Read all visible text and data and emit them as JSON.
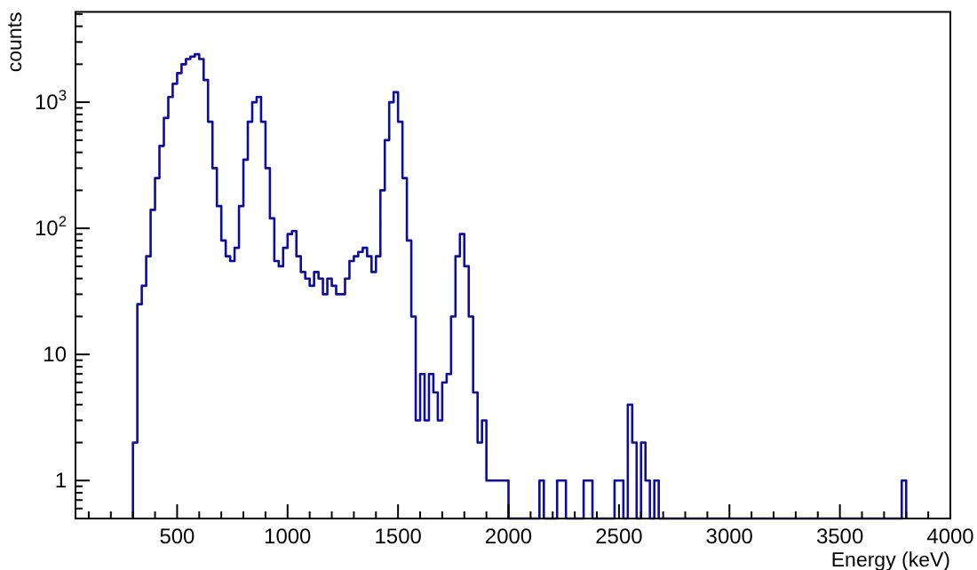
{
  "chart_data": {
    "type": "histogram",
    "xlabel": "Energy (keV)",
    "ylabel": "counts",
    "color": "#0c0ca0",
    "log": "y",
    "xlim": [
      40,
      4000
    ],
    "ylim": [
      0.5,
      5200
    ],
    "xticks": [
      {
        "value": 100,
        "label": null
      },
      {
        "value": 200,
        "label": null
      },
      {
        "value": 300,
        "label": null
      },
      {
        "value": 400,
        "label": null
      },
      500,
      {
        "value": 600,
        "label": null
      },
      {
        "value": 700,
        "label": null
      },
      {
        "value": 800,
        "label": null
      },
      {
        "value": 900,
        "label": null
      },
      1000,
      {
        "value": 1100,
        "label": null
      },
      {
        "value": 1200,
        "label": null
      },
      {
        "value": 1300,
        "label": null
      },
      {
        "value": 1400,
        "label": null
      },
      1500,
      {
        "value": 1600,
        "label": null
      },
      {
        "value": 1700,
        "label": null
      },
      {
        "value": 1800,
        "label": null
      },
      {
        "value": 1900,
        "label": null
      },
      2000,
      {
        "value": 2100,
        "label": null
      },
      {
        "value": 2200,
        "label": null
      },
      {
        "value": 2300,
        "label": null
      },
      {
        "value": 2400,
        "label": null
      },
      2500,
      {
        "value": 2600,
        "label": null
      },
      {
        "value": 2700,
        "label": null
      },
      {
        "value": 2800,
        "label": null
      },
      {
        "value": 2900,
        "label": null
      },
      3000,
      {
        "value": 3100,
        "label": null
      },
      {
        "value": 3200,
        "label": null
      },
      {
        "value": 3300,
        "label": null
      },
      {
        "value": 3400,
        "label": null
      },
      3500,
      {
        "value": 3600,
        "label": null
      },
      {
        "value": 3700,
        "label": null
      },
      {
        "value": 3800,
        "label": null
      },
      {
        "value": 3900,
        "label": null
      },
      4000
    ],
    "yticks": [
      {
        "value": 0.6,
        "label": null
      },
      {
        "value": 0.7,
        "label": null
      },
      {
        "value": 0.8,
        "label": null
      },
      {
        "value": 0.9,
        "label": null
      },
      1,
      {
        "value": 2,
        "label": null
      },
      {
        "value": 3,
        "label": null
      },
      {
        "value": 4,
        "label": null
      },
      {
        "value": 5,
        "label": null
      },
      {
        "value": 6,
        "label": null
      },
      {
        "value": 7,
        "label": null
      },
      {
        "value": 8,
        "label": null
      },
      {
        "value": 9,
        "label": null
      },
      10,
      {
        "value": 20,
        "label": null
      },
      {
        "value": 30,
        "label": null
      },
      {
        "value": 40,
        "label": null
      },
      {
        "value": 50,
        "label": null
      },
      {
        "value": 60,
        "label": null
      },
      {
        "value": 70,
        "label": null
      },
      {
        "value": 80,
        "label": null
      },
      {
        "value": 90,
        "label": null
      },
      {
        "value": 100,
        "label": "10$^{2}$"
      },
      {
        "value": 200,
        "label": null
      },
      {
        "value": 300,
        "label": null
      },
      {
        "value": 400,
        "label": null
      },
      {
        "value": 500,
        "label": null
      },
      {
        "value": 600,
        "label": null
      },
      {
        "value": 700,
        "label": null
      },
      {
        "value": 800,
        "label": null
      },
      {
        "value": 900,
        "label": null
      },
      {
        "value": 1000,
        "label": "10$^{3}$"
      },
      {
        "value": 2000,
        "label": null
      },
      {
        "value": 3000,
        "label": null
      },
      {
        "value": 4000,
        "label": null
      },
      {
        "value": 5000,
        "label": null
      }
    ],
    "bins": [
      300,
      320,
      340,
      360,
      380,
      400,
      420,
      440,
      460,
      480,
      500,
      520,
      540,
      560,
      580,
      600,
      620,
      640,
      660,
      680,
      700,
      720,
      740,
      760,
      780,
      800,
      820,
      840,
      860,
      880,
      900,
      920,
      940,
      960,
      980,
      1000,
      1020,
      1040,
      1060,
      1080,
      1100,
      1120,
      1140,
      1160,
      1180,
      1200,
      1220,
      1240,
      1260,
      1280,
      1300,
      1320,
      1340,
      1360,
      1380,
      1400,
      1420,
      1440,
      1460,
      1480,
      1500,
      1520,
      1540,
      1560,
      1580,
      1600,
      1620,
      1640,
      1660,
      1680,
      1700,
      1720,
      1740,
      1760,
      1780,
      1800,
      1820,
      1840,
      1860,
      1880,
      1900,
      1920,
      1940,
      1960,
      1980,
      2000,
      2020,
      2040,
      2060,
      2080,
      2100,
      2120,
      2140,
      2160,
      2180,
      2200,
      2220,
      2240,
      2260,
      2280,
      2300,
      2320,
      2340,
      2360,
      2380,
      2400,
      2420,
      2440,
      2460,
      2480,
      2500,
      2520,
      2540,
      2560,
      2580,
      2600,
      2620,
      2640,
      2660,
      2680,
      3780,
      3800
    ],
    "values": [
      2,
      25,
      35,
      60,
      140,
      250,
      450,
      750,
      1100,
      1400,
      1700,
      2000,
      2200,
      2300,
      2400,
      2200,
      1500,
      700,
      300,
      150,
      80,
      60,
      55,
      70,
      150,
      350,
      700,
      1000,
      1100,
      700,
      300,
      120,
      55,
      50,
      70,
      90,
      95,
      60,
      45,
      40,
      35,
      45,
      40,
      30,
      40,
      35,
      30,
      30,
      40,
      55,
      60,
      65,
      70,
      60,
      45,
      60,
      200,
      500,
      1000,
      1200,
      700,
      250,
      80,
      20,
      3,
      7,
      3,
      7,
      5,
      3,
      6,
      7,
      20,
      60,
      90,
      50,
      20,
      5,
      2,
      3,
      1,
      1,
      1,
      1,
      1,
      null,
      null,
      null,
      null,
      null,
      null,
      null,
      1,
      null,
      null,
      null,
      1,
      1,
      null,
      null,
      null,
      null,
      1,
      1,
      null,
      null,
      null,
      null,
      null,
      1,
      1,
      null,
      4,
      2,
      null,
      2,
      1,
      null,
      1,
      null,
      1
    ]
  }
}
